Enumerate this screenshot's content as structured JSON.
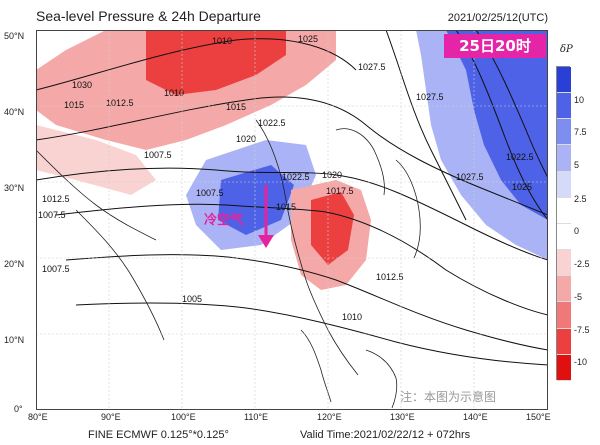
{
  "header": {
    "title": "Sea-level Pressure & 24h Departure",
    "datetime": "2021/02/25/12(UTC)"
  },
  "tag": {
    "label": "25日20时",
    "color": "#e524a8"
  },
  "cold_label": "冷空气",
  "axis": {
    "lat_labels": [
      "50°N",
      "40°N",
      "30°N",
      "20°N",
      "10°N",
      "0°"
    ],
    "lon_labels": [
      "80°E",
      "90°E",
      "100°E",
      "110°E",
      "120°E",
      "130°E",
      "140°E",
      "150°E"
    ]
  },
  "colorbar": {
    "title": "δP",
    "labels": [
      "10",
      "7.5",
      "5",
      "2.5",
      "0",
      "-2.5",
      "-5",
      "-7.5",
      "-10"
    ],
    "colors": [
      "#2a3fd6",
      "#4d62e6",
      "#7e8df0",
      "#aab3f5",
      "#d5daf9",
      "#ffffff",
      "#ffffff",
      "#f9d2d2",
      "#f5a8a8",
      "#f17878",
      "#ec4040",
      "#e01010"
    ]
  },
  "isobars": [
    "1030",
    "1025",
    "1020",
    "1017.5",
    "1015",
    "1012.5",
    "1010",
    "1007.5",
    "1005",
    "1022.5",
    "1027.5"
  ],
  "footer": {
    "model": "FINE ECMWF 0.125°*0.125°",
    "valid": "Valid Time:2021/02/22/12 + 072hrs"
  },
  "note": "注：本图为示意图"
}
